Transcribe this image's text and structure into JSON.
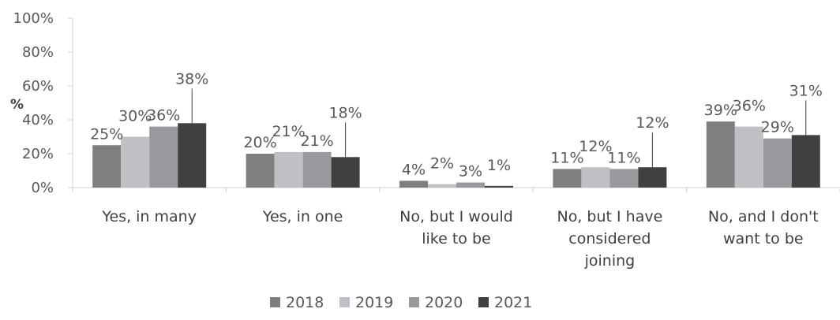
{
  "chart_data": {
    "type": "bar",
    "ylabel": "%",
    "ylim": [
      0,
      100
    ],
    "y_ticks": [
      "0%",
      "20%",
      "40%",
      "60%",
      "80%",
      "100%"
    ],
    "grid": false,
    "legend_position": "bottom",
    "categories": [
      [
        "Yes, in many"
      ],
      [
        "Yes, in one"
      ],
      [
        "No, but I would",
        "like to be"
      ],
      [
        "No, but I have",
        "considered",
        "joining"
      ],
      [
        "No, and I don't",
        "want to be"
      ]
    ],
    "series": [
      {
        "name": "2018",
        "color": "#7f7f7f",
        "values": [
          25,
          20,
          4,
          11,
          39
        ],
        "value_labels": [
          "25%",
          "20%",
          "4%",
          "11%",
          "39%"
        ]
      },
      {
        "name": "2019",
        "color": "#bfbfc4",
        "values": [
          30,
          21,
          2,
          12,
          36
        ],
        "value_labels": [
          "30%",
          "21%",
          "2%",
          "12%",
          "36%"
        ]
      },
      {
        "name": "2020",
        "color": "#9a9a9e",
        "values": [
          36,
          21,
          3,
          11,
          29
        ],
        "value_labels": [
          "36%",
          "21%",
          "3%",
          "11%",
          "29%"
        ]
      },
      {
        "name": "2021",
        "color": "#404040",
        "values": [
          38,
          18,
          1,
          12,
          31
        ],
        "value_labels": [
          "38%",
          "18%",
          "1%",
          "12%",
          "31%"
        ]
      }
    ]
  }
}
